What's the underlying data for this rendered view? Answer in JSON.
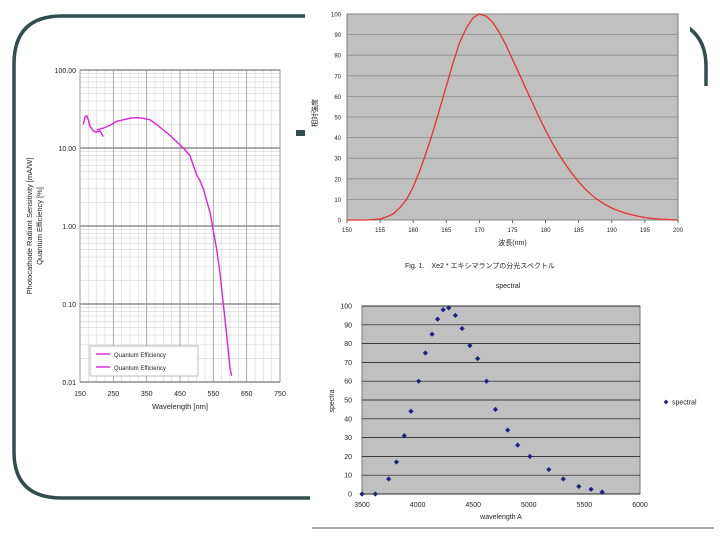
{
  "colors": {
    "frame": "#2f4f4f",
    "pink": "#e020e0",
    "red": "#e83030",
    "blue": "#1a237e",
    "grid": "#b8b8b8",
    "plot_bg": "#c0c0c0"
  },
  "charts": {
    "sensitivity": {
      "type": "line",
      "x_scale": "linear",
      "y_scale": "log",
      "xlim": [
        150,
        750
      ],
      "ylim": [
        0.01,
        100
      ],
      "xlabel": "Wavelength [nm]",
      "ylabel_line1": "Photocathode Radiant Sensitivity [mA/W]",
      "ylabel_line2": "Quantum Efficiency [%]",
      "x_ticks": [
        "150",
        "250",
        "350",
        "450",
        "550",
        "650",
        "750"
      ],
      "x_tick_values": [
        150,
        250,
        350,
        450,
        550,
        650,
        750
      ],
      "y_ticks": [
        "100.00",
        "10.00",
        "1.00",
        "0.10",
        "0.01"
      ],
      "y_tick_values": [
        100,
        10,
        1,
        0.1,
        0.01
      ],
      "legend": [
        "Quantum Efficiency",
        "Quantum Efficiency"
      ],
      "series": [
        {
          "name": "Quantum Efficiency",
          "x": [
            160,
            165,
            170,
            175,
            180,
            190,
            200,
            210,
            220
          ],
          "y": [
            20,
            25,
            26,
            23,
            19,
            16.5,
            16,
            16.5,
            14
          ]
        },
        {
          "name": "Quantum Efficiency",
          "x": [
            200,
            220,
            240,
            260,
            280,
            300,
            320,
            340,
            360,
            380,
            400,
            420,
            440,
            460,
            480,
            500,
            510,
            520,
            540,
            560,
            570,
            580,
            590,
            600,
            605
          ],
          "y": [
            17,
            18,
            19.5,
            22,
            23,
            24,
            24.5,
            24,
            23,
            20,
            17,
            14.5,
            12,
            10,
            8,
            4.5,
            3.8,
            3.0,
            1.5,
            0.5,
            0.25,
            0.1,
            0.04,
            0.015,
            0.012
          ]
        }
      ]
    },
    "xe2": {
      "type": "line",
      "xlim": [
        150,
        200
      ],
      "ylim": [
        0,
        100
      ],
      "x_ticks": [
        "150",
        "155",
        "160",
        "165",
        "170",
        "175",
        "180",
        "185",
        "190",
        "195",
        "200"
      ],
      "x_tick_values": [
        150,
        155,
        160,
        165,
        170,
        175,
        180,
        185,
        190,
        195,
        200
      ],
      "y_ticks": [
        "0",
        "10",
        "20",
        "30",
        "40",
        "50",
        "60",
        "70",
        "80",
        "90",
        "100"
      ],
      "y_tick_values": [
        0,
        10,
        20,
        30,
        40,
        50,
        60,
        70,
        80,
        90,
        100
      ],
      "xlabel": "波長(nm)",
      "ylabel": "相対強度",
      "caption": "Fig. 1.　Xe2 * エキシマランプの分光スペクトル",
      "series": [
        {
          "name": "Xe2",
          "x": [
            150,
            153,
            155,
            156,
            157,
            158,
            159,
            160,
            161,
            162,
            163,
            164,
            165,
            166,
            167,
            168,
            169,
            170,
            171,
            172,
            173,
            174,
            175,
            176,
            177,
            178,
            179,
            180,
            181,
            182,
            183,
            184,
            185,
            186,
            187,
            188,
            189,
            190,
            191,
            192,
            193,
            194,
            195,
            196,
            197,
            198,
            200
          ],
          "y": [
            0,
            0,
            0.5,
            1.5,
            3,
            6,
            10,
            16,
            24,
            33,
            43,
            54,
            65,
            76,
            86,
            93,
            98,
            100,
            99,
            96,
            91,
            85,
            78,
            71,
            64,
            57,
            50,
            43.5,
            37.5,
            32,
            27,
            22.5,
            18.5,
            15,
            12,
            9.5,
            7.5,
            5.8,
            4.5,
            3.4,
            2.5,
            1.8,
            1.2,
            0.8,
            0.5,
            0.3,
            0
          ]
        }
      ]
    },
    "spectral": {
      "type": "scatter",
      "title": "spectral",
      "xlim": [
        3500,
        6000
      ],
      "ylim": [
        0,
        100
      ],
      "x_ticks": [
        "3500",
        "4000",
        "4500",
        "5000",
        "5500",
        "6000"
      ],
      "x_tick_values": [
        3500,
        4000,
        4500,
        5000,
        5500,
        6000
      ],
      "y_ticks": [
        "0",
        "10",
        "20",
        "30",
        "40",
        "50",
        "60",
        "70",
        "80",
        "90",
        "100"
      ],
      "y_tick_values": [
        0,
        10,
        20,
        30,
        40,
        50,
        60,
        70,
        80,
        90,
        100
      ],
      "xlabel": "wavelength A",
      "ylabel": "spectra",
      "legend": [
        "spectral"
      ],
      "series": [
        {
          "name": "spectral",
          "x": [
            3500,
            3620,
            3740,
            3810,
            3880,
            3940,
            4010,
            4070,
            4130,
            4180,
            4230,
            4280,
            4340,
            4400,
            4470,
            4540,
            4620,
            4700,
            4810,
            4900,
            5010,
            5180,
            5310,
            5450,
            5560,
            5660
          ],
          "y": [
            0,
            0,
            8,
            17,
            31,
            44,
            60,
            75,
            85,
            93,
            98,
            99,
            95,
            88,
            79,
            72,
            60,
            45,
            34,
            26,
            20,
            13,
            8,
            4,
            2.5,
            1
          ]
        }
      ]
    }
  }
}
